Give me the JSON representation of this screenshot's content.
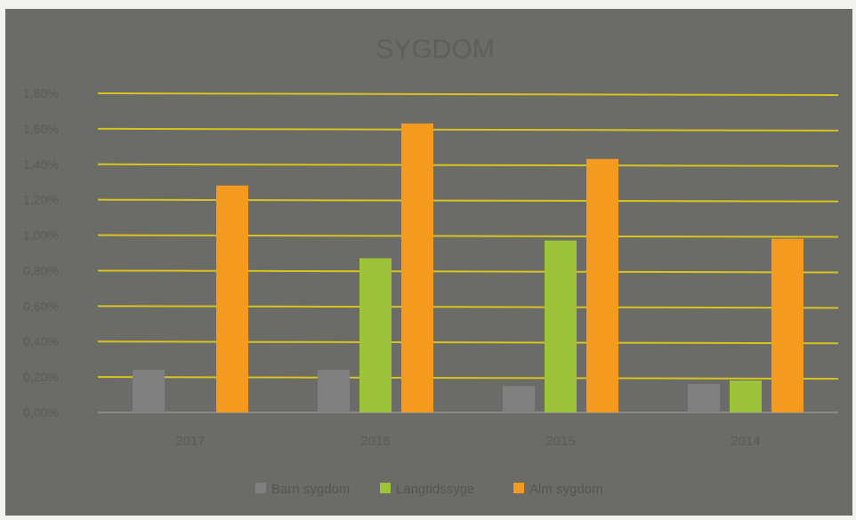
{
  "chart_data": {
    "type": "bar",
    "title": "SYGDOM",
    "categories": [
      "2017",
      "2016",
      "2015",
      "2014"
    ],
    "series": [
      {
        "name": "Barn sygdom",
        "color": "#808080",
        "values": [
          0.24,
          0.24,
          0.15,
          0.16
        ]
      },
      {
        "name": "Langtidssyge",
        "color": "#9dc33b",
        "values": [
          0,
          0.87,
          0.97,
          0.18
        ]
      },
      {
        "name": "Alm sygdom",
        "color": "#f39a1f",
        "values": [
          1.28,
          1.63,
          1.43,
          0.98
        ]
      }
    ],
    "yticks": [
      "0,00%",
      "0,20%",
      "0,40%",
      "0,60%",
      "0,80%",
      "1,00%",
      "1,20%",
      "1,40%",
      "1,60%",
      "1,80%"
    ],
    "ylim": [
      0,
      1.8
    ],
    "ylabel": "",
    "xlabel": "",
    "grid": true,
    "gridline_color": "#d9c31e",
    "legend_position": "bottom"
  }
}
